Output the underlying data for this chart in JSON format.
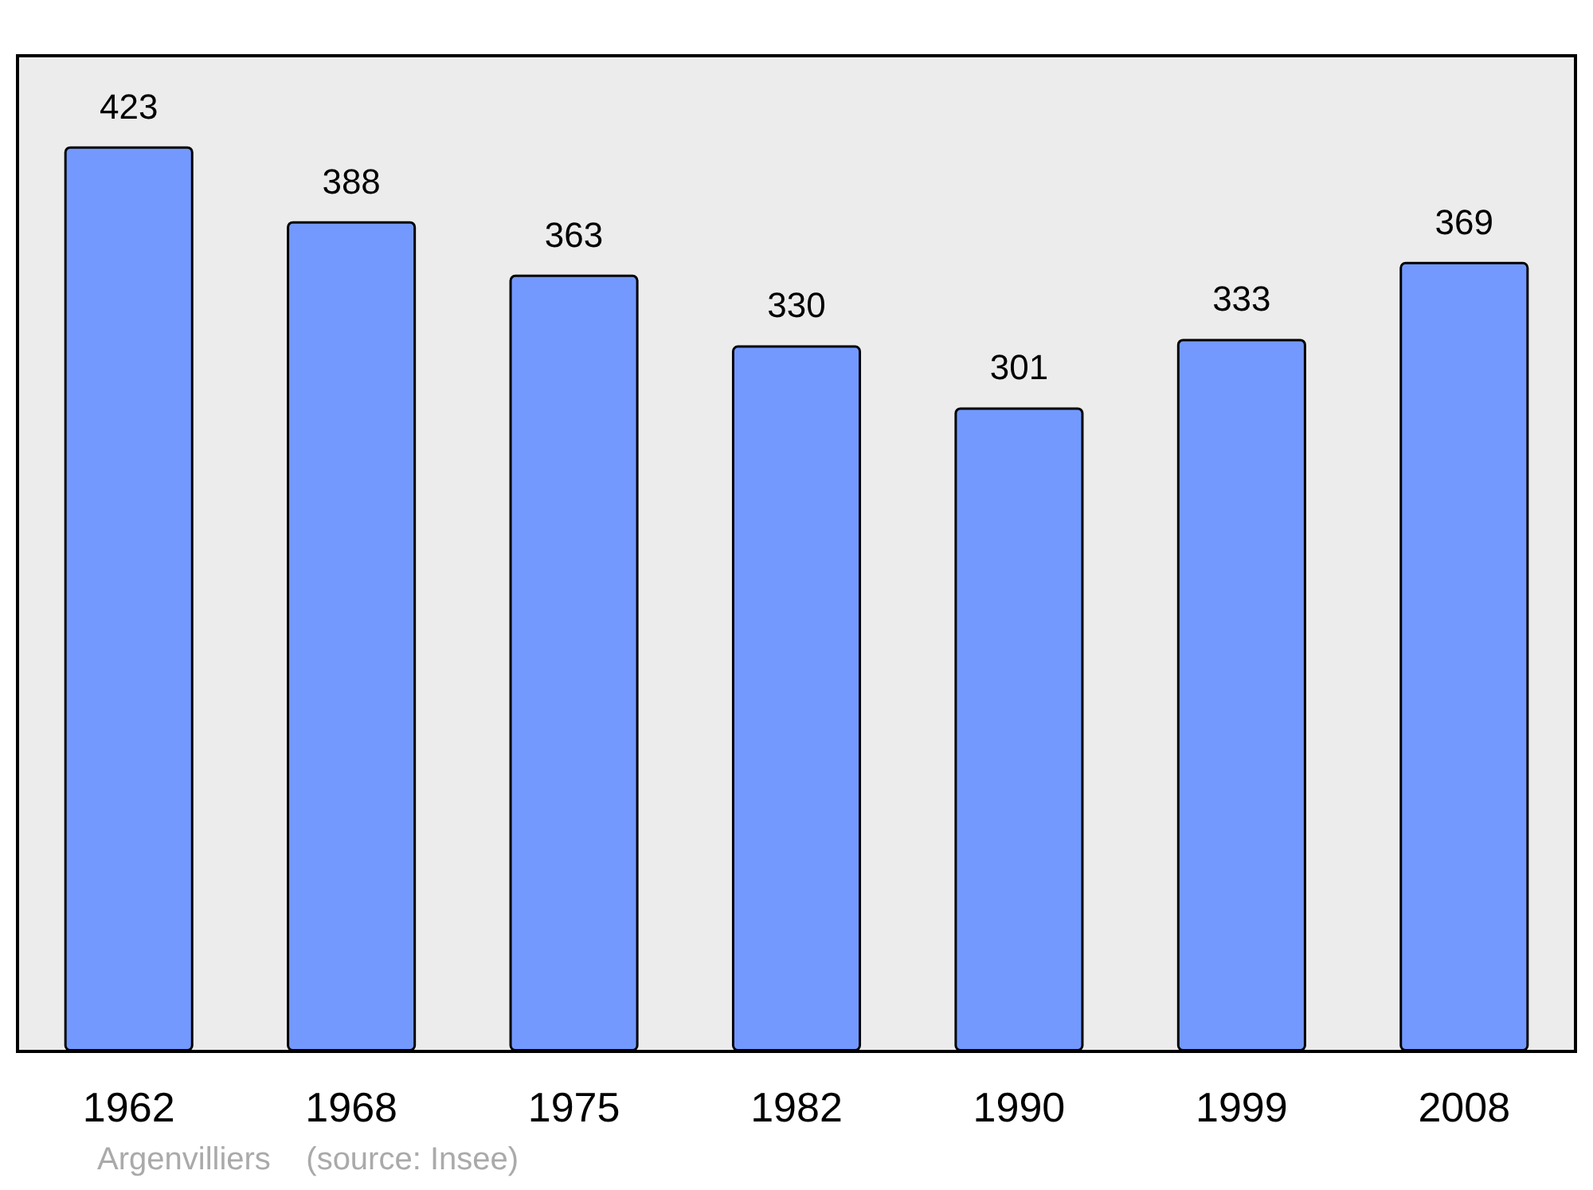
{
  "chart_data": {
    "type": "bar",
    "categories": [
      "1962",
      "1968",
      "1975",
      "1982",
      "1990",
      "1999",
      "2008"
    ],
    "values": [
      423,
      388,
      363,
      330,
      301,
      333,
      369
    ],
    "color": "#7399ff",
    "data_labels": true,
    "annotations": [
      "Argenvilliers    (source: Insee)"
    ]
  }
}
